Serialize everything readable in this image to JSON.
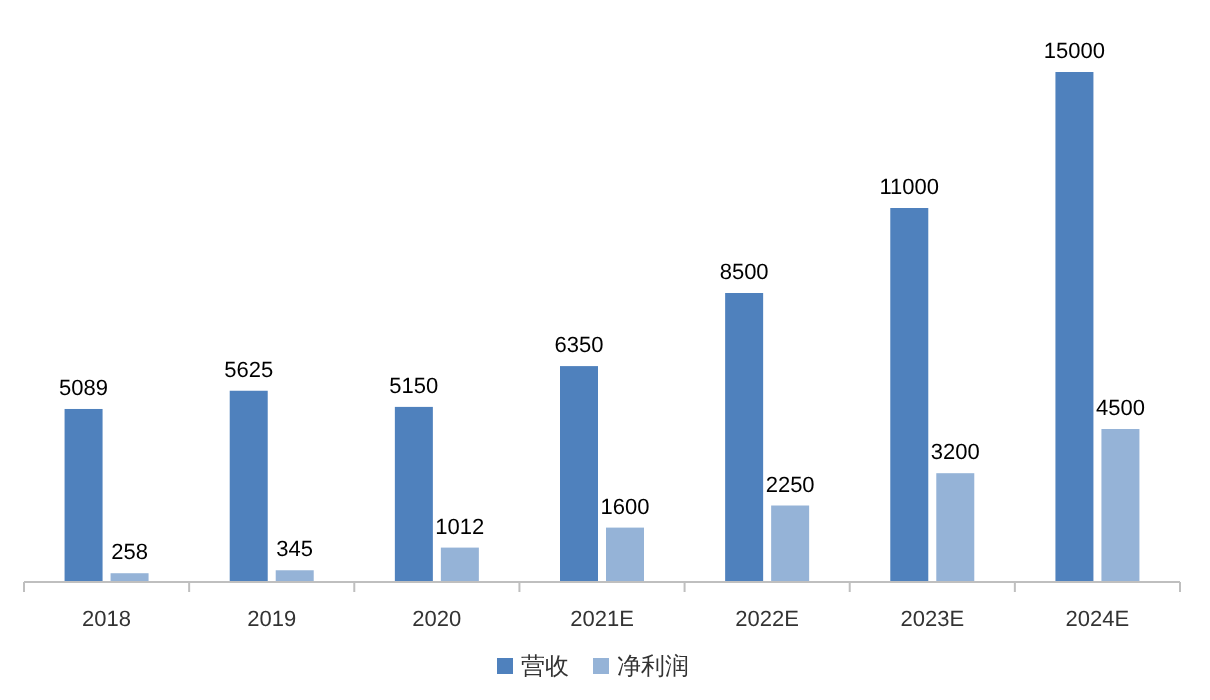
{
  "chart_data": {
    "type": "bar",
    "categories": [
      "2018",
      "2019",
      "2020",
      "2021E",
      "2022E",
      "2023E",
      "2024E"
    ],
    "series": [
      {
        "name": "营收",
        "color": "#4f81bd",
        "values": [
          5089,
          5625,
          5150,
          6350,
          8500,
          11000,
          15000
        ]
      },
      {
        "name": "净利润",
        "color": "#95b3d7",
        "values": [
          258,
          345,
          1012,
          1600,
          2250,
          3200,
          4500
        ]
      }
    ],
    "data_labels": true,
    "legend": "bottom"
  }
}
